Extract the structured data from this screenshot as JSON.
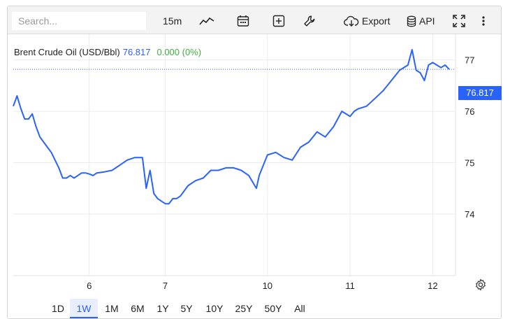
{
  "toolbar": {
    "search_placeholder": "Search...",
    "interval": "15m",
    "export_label": "Export",
    "api_label": "API",
    "icons": [
      "line-chart-icon",
      "calendar-icon",
      "plus-box-icon",
      "wrench-icon",
      "cloud-download-icon",
      "database-icon",
      "fullscreen-icon",
      "more-vertical-icon"
    ]
  },
  "legend": {
    "symbol": "Brent Crude Oil (USD/Bbl)",
    "price": "76.817",
    "change": "0.000 (0%)"
  },
  "price_tag": "76.817",
  "colors": {
    "line": "#2962ff",
    "positive": "#3fae3f",
    "grid": "#ececec",
    "toolbar_bg": "#f3f3f3"
  },
  "ranges": {
    "items": [
      "1D",
      "1W",
      "1M",
      "6M",
      "1Y",
      "5Y",
      "10Y",
      "25Y",
      "50Y",
      "All"
    ],
    "active": "1W"
  },
  "chart_data": {
    "type": "line",
    "series": [
      {
        "x": [
          5.0,
          5.05,
          5.1,
          5.15,
          5.2,
          5.25,
          5.3,
          5.35,
          5.4,
          5.45,
          5.5,
          5.55,
          5.6,
          5.65,
          5.7,
          5.75,
          5.8,
          5.85,
          5.9,
          5.95,
          6.0,
          6.05,
          6.1,
          6.2,
          6.3,
          6.4,
          6.5,
          6.6,
          6.7,
          6.75,
          6.8,
          6.85,
          6.9,
          6.95,
          7.0,
          7.05,
          7.1,
          7.15,
          7.2,
          7.3,
          7.4,
          7.5,
          7.6,
          7.7,
          7.8,
          7.9,
          8.0,
          8.1,
          8.2,
          9.9,
          10.0,
          10.1,
          10.2,
          10.3,
          10.4,
          10.5,
          10.6,
          10.7,
          10.8,
          10.9,
          11.0,
          11.05,
          11.1,
          11.2,
          11.3,
          11.4,
          11.5,
          11.6,
          11.7,
          11.75,
          11.8,
          11.85,
          11.9,
          11.95,
          12.0,
          12.05,
          12.1,
          12.15,
          12.2
        ],
        "y": [
          76.1,
          76.3,
          76.05,
          75.85,
          75.85,
          75.95,
          75.7,
          75.5,
          75.4,
          75.3,
          75.2,
          75.05,
          74.9,
          74.7,
          74.7,
          74.75,
          74.7,
          74.75,
          74.8,
          74.8,
          74.78,
          74.75,
          74.8,
          74.82,
          74.85,
          74.95,
          75.05,
          75.1,
          75.1,
          74.5,
          74.85,
          74.4,
          74.3,
          74.25,
          74.2,
          74.2,
          74.3,
          74.3,
          74.35,
          74.55,
          74.65,
          74.7,
          74.85,
          74.85,
          74.9,
          74.9,
          74.85,
          74.75,
          74.5,
          74.75,
          75.15,
          75.2,
          75.1,
          75.05,
          75.3,
          75.4,
          75.6,
          75.5,
          75.7,
          76.0,
          75.9,
          76.0,
          76.05,
          76.1,
          76.25,
          76.4,
          76.6,
          76.8,
          76.9,
          77.2,
          76.8,
          76.75,
          76.6,
          76.9,
          76.95,
          76.9,
          76.85,
          76.9,
          76.817
        ]
      }
    ],
    "x_ticks": [
      {
        "value": 6,
        "label": "6"
      },
      {
        "value": 7,
        "label": "7"
      },
      {
        "value": 10,
        "label": "10"
      },
      {
        "value": 11,
        "label": "11"
      },
      {
        "value": 12,
        "label": "12"
      }
    ],
    "y_ticks": [
      74,
      75,
      76,
      77
    ],
    "ylim": [
      72.8,
      77.5
    ],
    "last_value": 76.817,
    "grid": true
  }
}
